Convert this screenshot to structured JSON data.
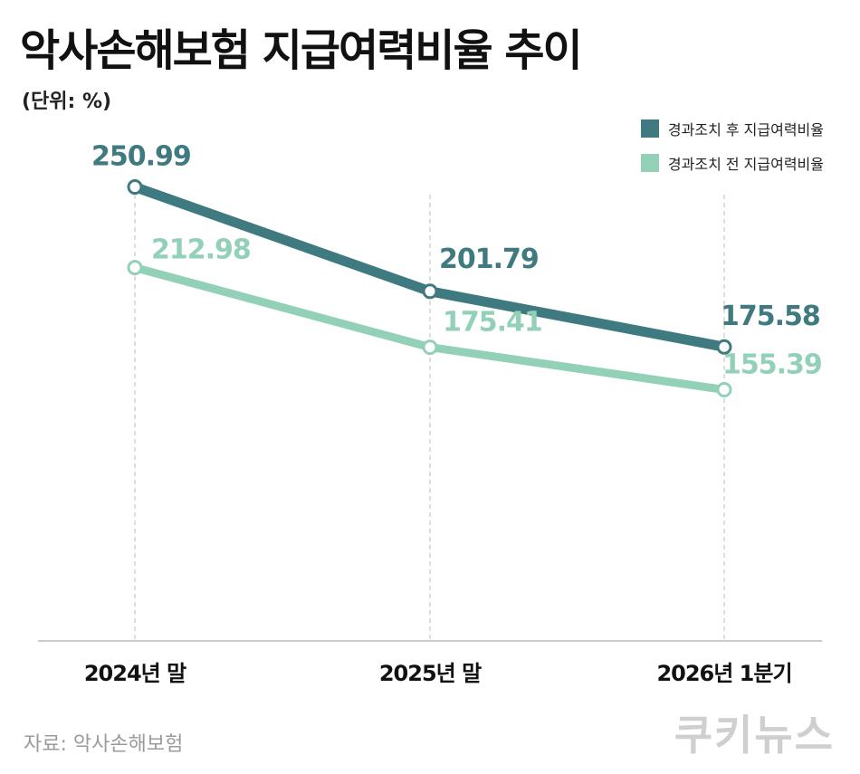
{
  "title": "악사손해보험 지급여력비율 추이",
  "unit": "(단위: %)",
  "source": "자료: 악사손해보험",
  "brand": "쿠키뉴스",
  "colors": {
    "after": "#3f7a80",
    "before": "#92d1b7",
    "axis": "#bbbbbb",
    "guide": "#c8c8c8"
  },
  "chart_data": {
    "type": "line",
    "categories": [
      "2024년 말",
      "2025년 말",
      "2026년 1분기"
    ],
    "series": [
      {
        "name": "경과조치 후 지급여력비율",
        "values": [
          250.99,
          201.79,
          175.58
        ],
        "labels": [
          "250.99",
          "201.79",
          "175.58"
        ]
      },
      {
        "name": "경과조치 전 지급여력비율",
        "values": [
          212.98,
          175.41,
          155.39
        ],
        "labels": [
          "212.98",
          "175.41",
          "155.39"
        ]
      }
    ],
    "legend_position": "top-right",
    "grid": false
  }
}
